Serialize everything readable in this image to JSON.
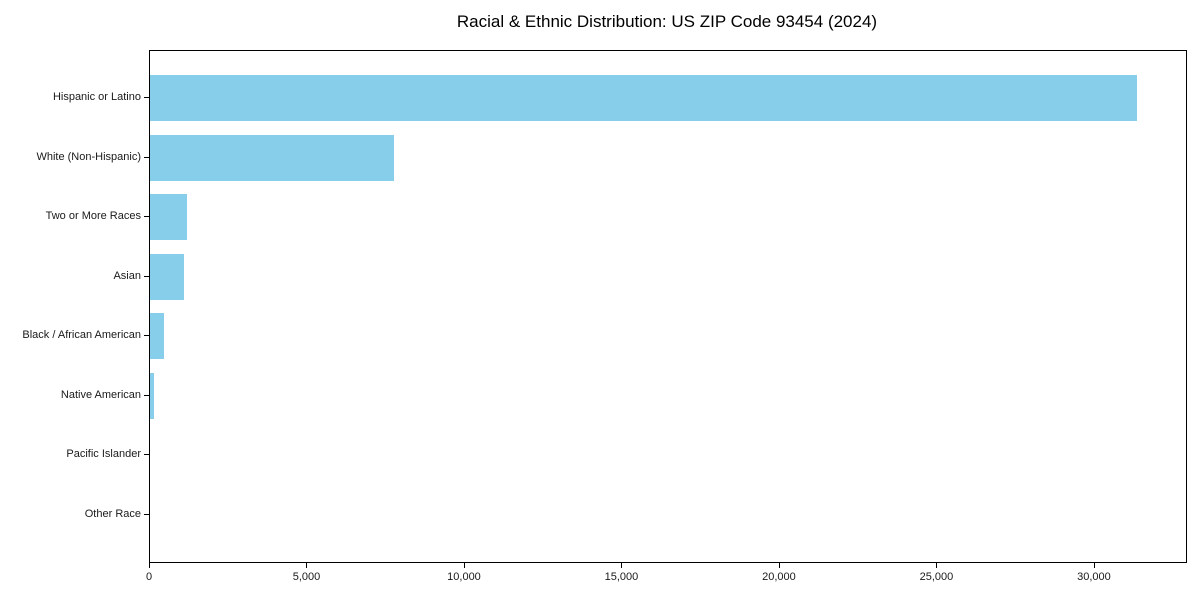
{
  "chart_data": {
    "type": "bar",
    "orientation": "horizontal",
    "title": "Racial & Ethnic Distribution: US ZIP Code 93454 (2024)",
    "xlabel": "",
    "ylabel": "",
    "categories": [
      "Hispanic or Latino",
      "White (Non-Hispanic)",
      "Two or More Races",
      "Asian",
      "Black / African American",
      "Native American",
      "Pacific Islander",
      "Other Race"
    ],
    "values": [
      31350,
      7750,
      1165,
      1090,
      435,
      120,
      0,
      0
    ],
    "xlim": [
      0,
      32890
    ],
    "x_ticks": [
      {
        "value": 0,
        "label": "0"
      },
      {
        "value": 5000,
        "label": "5,000"
      },
      {
        "value": 10000,
        "label": "10,000"
      },
      {
        "value": 15000,
        "label": "15,000"
      },
      {
        "value": 20000,
        "label": "20,000"
      },
      {
        "value": 25000,
        "label": "25,000"
      },
      {
        "value": 30000,
        "label": "30,000"
      }
    ],
    "grid": false,
    "legend": "none",
    "bar_color": "#87CEEB",
    "text_color": "#000000",
    "spine_color": "#000000",
    "background_color": "#ffffff"
  }
}
